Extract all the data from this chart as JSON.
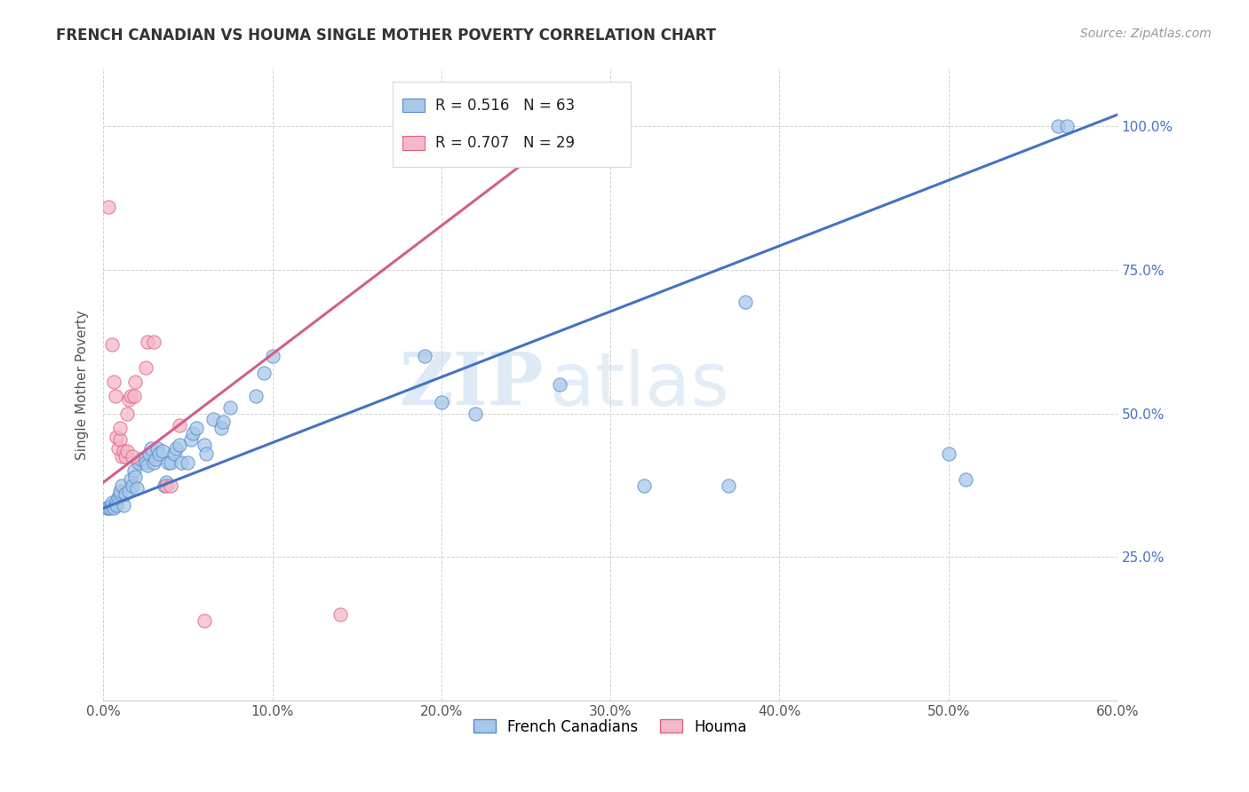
{
  "title": "FRENCH CANADIAN VS HOUMA SINGLE MOTHER POVERTY CORRELATION CHART",
  "source": "Source: ZipAtlas.com",
  "ylabel": "Single Mother Poverty",
  "xlim": [
    0.0,
    0.6
  ],
  "ylim": [
    0.0,
    1.1
  ],
  "xtick_vals": [
    0.0,
    0.1,
    0.2,
    0.3,
    0.4,
    0.5,
    0.6
  ],
  "xtick_labels": [
    "0.0%",
    "10.0%",
    "20.0%",
    "30.0%",
    "40.0%",
    "50.0%",
    "60.0%"
  ],
  "ytick_vals": [
    0.25,
    0.5,
    0.75,
    1.0
  ],
  "ytick_labels": [
    "25.0%",
    "50.0%",
    "75.0%",
    "100.0%"
  ],
  "blue_R": 0.516,
  "blue_N": 63,
  "pink_R": 0.707,
  "pink_N": 29,
  "blue_color": "#a8c8e8",
  "pink_color": "#f4b8c8",
  "blue_edge_color": "#5588cc",
  "pink_edge_color": "#e06080",
  "blue_line_color": "#4472c4",
  "pink_line_color": "#d06088",
  "legend_label_blue": "French Canadians",
  "legend_label_pink": "Houma",
  "watermark_zip": "ZIP",
  "watermark_atlas": "atlas",
  "blue_line_x": [
    0.0,
    0.6
  ],
  "blue_line_y": [
    0.335,
    1.02
  ],
  "pink_line_x": [
    0.0,
    0.3
  ],
  "pink_line_y": [
    0.38,
    1.05
  ],
  "blue_dots": [
    [
      0.002,
      0.335
    ],
    [
      0.003,
      0.335
    ],
    [
      0.004,
      0.335
    ],
    [
      0.005,
      0.34
    ],
    [
      0.005,
      0.345
    ],
    [
      0.006,
      0.335
    ],
    [
      0.007,
      0.345
    ],
    [
      0.008,
      0.34
    ],
    [
      0.009,
      0.355
    ],
    [
      0.01,
      0.36
    ],
    [
      0.01,
      0.365
    ],
    [
      0.011,
      0.375
    ],
    [
      0.012,
      0.34
    ],
    [
      0.013,
      0.36
    ],
    [
      0.015,
      0.365
    ],
    [
      0.016,
      0.385
    ],
    [
      0.017,
      0.375
    ],
    [
      0.018,
      0.4
    ],
    [
      0.019,
      0.39
    ],
    [
      0.02,
      0.37
    ],
    [
      0.021,
      0.415
    ],
    [
      0.022,
      0.42
    ],
    [
      0.025,
      0.415
    ],
    [
      0.026,
      0.41
    ],
    [
      0.027,
      0.43
    ],
    [
      0.028,
      0.44
    ],
    [
      0.03,
      0.415
    ],
    [
      0.031,
      0.42
    ],
    [
      0.032,
      0.44
    ],
    [
      0.033,
      0.43
    ],
    [
      0.035,
      0.435
    ],
    [
      0.036,
      0.375
    ],
    [
      0.037,
      0.38
    ],
    [
      0.038,
      0.415
    ],
    [
      0.04,
      0.415
    ],
    [
      0.042,
      0.43
    ],
    [
      0.043,
      0.44
    ],
    [
      0.045,
      0.445
    ],
    [
      0.046,
      0.415
    ],
    [
      0.05,
      0.415
    ],
    [
      0.052,
      0.455
    ],
    [
      0.053,
      0.465
    ],
    [
      0.055,
      0.475
    ],
    [
      0.06,
      0.445
    ],
    [
      0.061,
      0.43
    ],
    [
      0.065,
      0.49
    ],
    [
      0.07,
      0.475
    ],
    [
      0.071,
      0.485
    ],
    [
      0.075,
      0.51
    ],
    [
      0.09,
      0.53
    ],
    [
      0.095,
      0.57
    ],
    [
      0.1,
      0.6
    ],
    [
      0.19,
      0.6
    ],
    [
      0.2,
      0.52
    ],
    [
      0.22,
      0.5
    ],
    [
      0.27,
      0.55
    ],
    [
      0.32,
      0.375
    ],
    [
      0.37,
      0.375
    ],
    [
      0.38,
      0.695
    ],
    [
      0.5,
      0.43
    ],
    [
      0.51,
      0.385
    ],
    [
      0.565,
      1.0
    ],
    [
      0.57,
      1.0
    ]
  ],
  "pink_dots": [
    [
      0.003,
      0.86
    ],
    [
      0.005,
      0.62
    ],
    [
      0.006,
      0.555
    ],
    [
      0.007,
      0.53
    ],
    [
      0.008,
      0.46
    ],
    [
      0.009,
      0.44
    ],
    [
      0.01,
      0.455
    ],
    [
      0.01,
      0.475
    ],
    [
      0.011,
      0.425
    ],
    [
      0.012,
      0.435
    ],
    [
      0.013,
      0.425
    ],
    [
      0.014,
      0.435
    ],
    [
      0.014,
      0.5
    ],
    [
      0.015,
      0.525
    ],
    [
      0.016,
      0.53
    ],
    [
      0.017,
      0.425
    ],
    [
      0.018,
      0.53
    ],
    [
      0.019,
      0.555
    ],
    [
      0.025,
      0.58
    ],
    [
      0.026,
      0.625
    ],
    [
      0.03,
      0.625
    ],
    [
      0.037,
      0.375
    ],
    [
      0.04,
      0.375
    ],
    [
      0.045,
      0.48
    ],
    [
      0.06,
      0.14
    ],
    [
      0.14,
      0.15
    ],
    [
      0.2,
      1.0
    ],
    [
      0.23,
      1.0
    ],
    [
      0.27,
      1.0
    ]
  ]
}
